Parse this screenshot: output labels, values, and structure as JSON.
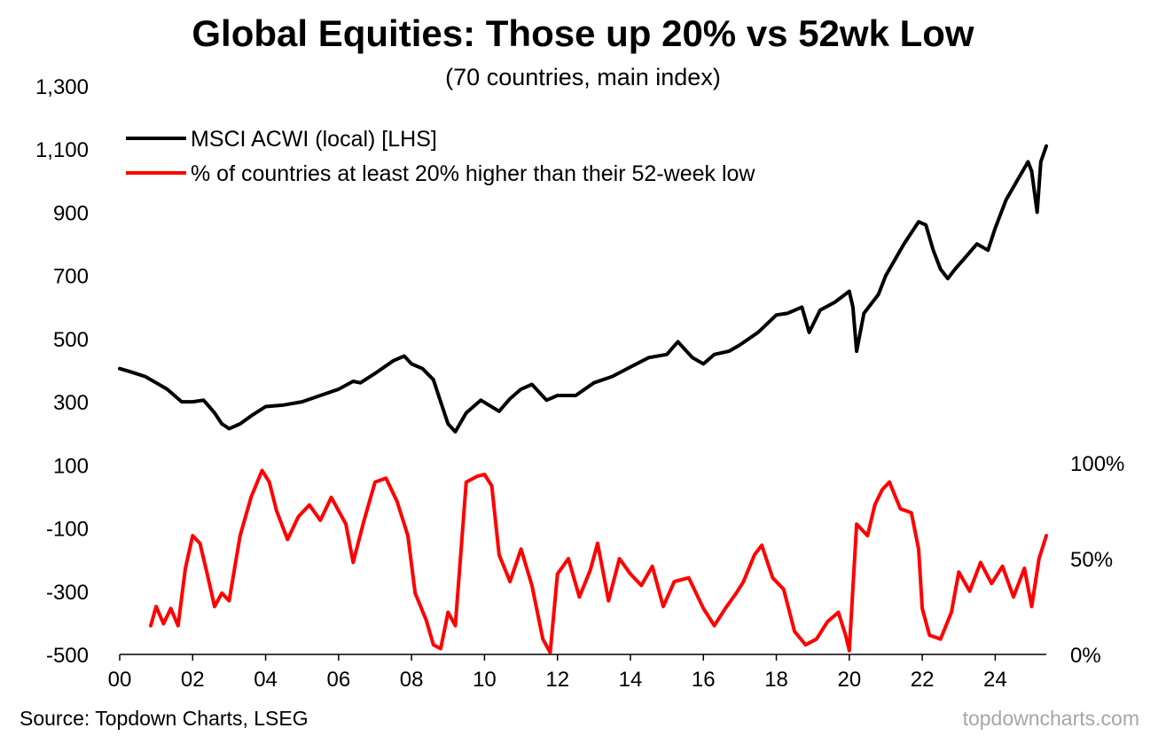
{
  "chart_data": {
    "type": "line",
    "title": "Global Equities: Those up 20% vs 52wk Low",
    "subtitle": "(70 countries, main index)",
    "source": "Source: Topdown Charts, LSEG",
    "watermark": "topdowncharts.com",
    "x_range": [
      2000,
      2025.4
    ],
    "x_ticks": [
      "00",
      "02",
      "04",
      "06",
      "08",
      "10",
      "12",
      "14",
      "16",
      "18",
      "20",
      "22",
      "24"
    ],
    "y_left": {
      "range": [
        -500,
        1300
      ],
      "ticks": [
        "1,300",
        "1,100",
        "900",
        "700",
        "500",
        "300",
        "100",
        "-100",
        "-300",
        "-500"
      ]
    },
    "y_right": {
      "range": [
        0,
        100
      ],
      "ticks": [
        "100%",
        "50%",
        "0%"
      ]
    },
    "series": [
      {
        "name": "MSCI ACWI (local) [LHS]",
        "color": "#000000",
        "axis": "left",
        "points": [
          [
            2000.0,
            405
          ],
          [
            2000.3,
            395
          ],
          [
            2000.7,
            380
          ],
          [
            2001.0,
            360
          ],
          [
            2001.3,
            340
          ],
          [
            2001.7,
            300
          ],
          [
            2002.0,
            300
          ],
          [
            2002.3,
            305
          ],
          [
            2002.6,
            265
          ],
          [
            2002.8,
            230
          ],
          [
            2003.0,
            215
          ],
          [
            2003.3,
            230
          ],
          [
            2003.6,
            255
          ],
          [
            2004.0,
            285
          ],
          [
            2004.5,
            290
          ],
          [
            2005.0,
            300
          ],
          [
            2005.5,
            320
          ],
          [
            2006.0,
            340
          ],
          [
            2006.4,
            365
          ],
          [
            2006.6,
            360
          ],
          [
            2007.0,
            390
          ],
          [
            2007.5,
            430
          ],
          [
            2007.8,
            445
          ],
          [
            2008.0,
            420
          ],
          [
            2008.3,
            405
          ],
          [
            2008.6,
            370
          ],
          [
            2008.8,
            300
          ],
          [
            2009.0,
            230
          ],
          [
            2009.2,
            205
          ],
          [
            2009.5,
            265
          ],
          [
            2009.9,
            305
          ],
          [
            2010.4,
            270
          ],
          [
            2010.7,
            310
          ],
          [
            2011.0,
            340
          ],
          [
            2011.3,
            355
          ],
          [
            2011.7,
            305
          ],
          [
            2012.0,
            320
          ],
          [
            2012.5,
            320
          ],
          [
            2013.0,
            360
          ],
          [
            2013.5,
            380
          ],
          [
            2014.0,
            410
          ],
          [
            2014.5,
            440
          ],
          [
            2015.0,
            450
          ],
          [
            2015.3,
            490
          ],
          [
            2015.7,
            440
          ],
          [
            2016.0,
            420
          ],
          [
            2016.3,
            450
          ],
          [
            2016.7,
            460
          ],
          [
            2017.0,
            480
          ],
          [
            2017.5,
            520
          ],
          [
            2018.0,
            575
          ],
          [
            2018.3,
            580
          ],
          [
            2018.7,
            600
          ],
          [
            2018.9,
            520
          ],
          [
            2019.2,
            590
          ],
          [
            2019.6,
            615
          ],
          [
            2020.0,
            650
          ],
          [
            2020.1,
            600
          ],
          [
            2020.2,
            460
          ],
          [
            2020.4,
            580
          ],
          [
            2020.8,
            640
          ],
          [
            2021.0,
            700
          ],
          [
            2021.5,
            800
          ],
          [
            2021.9,
            870
          ],
          [
            2022.1,
            860
          ],
          [
            2022.3,
            780
          ],
          [
            2022.5,
            720
          ],
          [
            2022.7,
            690
          ],
          [
            2022.9,
            720
          ],
          [
            2023.2,
            760
          ],
          [
            2023.5,
            800
          ],
          [
            2023.8,
            780
          ],
          [
            2024.0,
            850
          ],
          [
            2024.3,
            940
          ],
          [
            2024.6,
            1000
          ],
          [
            2024.9,
            1060
          ],
          [
            2025.0,
            1030
          ],
          [
            2025.15,
            900
          ],
          [
            2025.25,
            1060
          ],
          [
            2025.4,
            1110
          ]
        ]
      },
      {
        "name": "% of countries at least 20% higher than their 52-week low",
        "color": "#ff0000",
        "axis": "right",
        "points": [
          [
            2000.85,
            15
          ],
          [
            2001.0,
            25
          ],
          [
            2001.2,
            16
          ],
          [
            2001.4,
            24
          ],
          [
            2001.6,
            15
          ],
          [
            2001.8,
            45
          ],
          [
            2002.0,
            62
          ],
          [
            2002.2,
            58
          ],
          [
            2002.4,
            42
          ],
          [
            2002.6,
            25
          ],
          [
            2002.8,
            32
          ],
          [
            2003.0,
            28
          ],
          [
            2003.3,
            62
          ],
          [
            2003.6,
            82
          ],
          [
            2003.9,
            96
          ],
          [
            2004.1,
            90
          ],
          [
            2004.3,
            75
          ],
          [
            2004.6,
            60
          ],
          [
            2004.9,
            72
          ],
          [
            2005.2,
            78
          ],
          [
            2005.5,
            70
          ],
          [
            2005.8,
            82
          ],
          [
            2006.2,
            68
          ],
          [
            2006.4,
            48
          ],
          [
            2006.7,
            70
          ],
          [
            2007.0,
            90
          ],
          [
            2007.3,
            92
          ],
          [
            2007.6,
            80
          ],
          [
            2007.9,
            62
          ],
          [
            2008.1,
            32
          ],
          [
            2008.4,
            18
          ],
          [
            2008.6,
            5
          ],
          [
            2008.8,
            3
          ],
          [
            2009.0,
            22
          ],
          [
            2009.2,
            15
          ],
          [
            2009.5,
            90
          ],
          [
            2009.8,
            93
          ],
          [
            2010.0,
            94
          ],
          [
            2010.2,
            88
          ],
          [
            2010.4,
            52
          ],
          [
            2010.7,
            38
          ],
          [
            2011.0,
            55
          ],
          [
            2011.3,
            36
          ],
          [
            2011.6,
            8
          ],
          [
            2011.8,
            1
          ],
          [
            2012.0,
            42
          ],
          [
            2012.3,
            50
          ],
          [
            2012.6,
            30
          ],
          [
            2012.9,
            44
          ],
          [
            2013.1,
            58
          ],
          [
            2013.4,
            28
          ],
          [
            2013.7,
            50
          ],
          [
            2014.0,
            42
          ],
          [
            2014.3,
            36
          ],
          [
            2014.6,
            46
          ],
          [
            2014.9,
            25
          ],
          [
            2015.2,
            38
          ],
          [
            2015.6,
            40
          ],
          [
            2016.0,
            24
          ],
          [
            2016.3,
            15
          ],
          [
            2016.6,
            24
          ],
          [
            2016.9,
            32
          ],
          [
            2017.1,
            38
          ],
          [
            2017.4,
            52
          ],
          [
            2017.6,
            57
          ],
          [
            2017.9,
            40
          ],
          [
            2018.2,
            34
          ],
          [
            2018.5,
            12
          ],
          [
            2018.8,
            5
          ],
          [
            2019.1,
            8
          ],
          [
            2019.4,
            17
          ],
          [
            2019.7,
            22
          ],
          [
            2019.9,
            10
          ],
          [
            2020.0,
            2
          ],
          [
            2020.2,
            68
          ],
          [
            2020.5,
            62
          ],
          [
            2020.7,
            78
          ],
          [
            2020.9,
            86
          ],
          [
            2021.1,
            90
          ],
          [
            2021.4,
            76
          ],
          [
            2021.7,
            74
          ],
          [
            2021.9,
            55
          ],
          [
            2022.0,
            24
          ],
          [
            2022.2,
            10
          ],
          [
            2022.5,
            8
          ],
          [
            2022.8,
            22
          ],
          [
            2023.0,
            43
          ],
          [
            2023.3,
            33
          ],
          [
            2023.6,
            48
          ],
          [
            2023.9,
            37
          ],
          [
            2024.2,
            46
          ],
          [
            2024.5,
            30
          ],
          [
            2024.8,
            45
          ],
          [
            2025.0,
            25
          ],
          [
            2025.2,
            50
          ],
          [
            2025.4,
            62
          ]
        ]
      }
    ]
  }
}
